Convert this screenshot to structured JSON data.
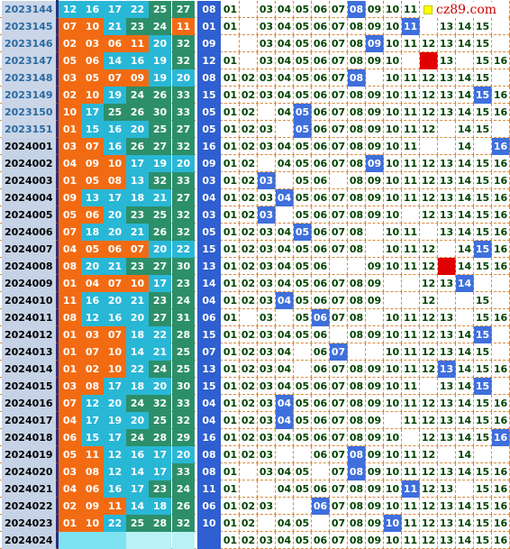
{
  "logo": {
    "text": "cz89.com"
  },
  "colors": {
    "red_bg": "#f26b13",
    "blue_bg": "#29b7d6",
    "teal_bg": "#2c8f6a",
    "special_bg": "#2f5fd0",
    "period_bg": "#c6d3e6",
    "hit_bg": "#3f6fdc",
    "mark_red": "#e00000",
    "dash": "#d98a3a"
  },
  "rows": [
    {
      "period": "2023144",
      "red": [
        "12",
        "16",
        "17",
        "22",
        "25",
        "27"
      ],
      "blue": "08",
      "zone": [
        "01",
        "",
        "03",
        "04",
        "05",
        "06",
        "07",
        "08",
        "09",
        "10",
        "11",
        "",
        "",
        "",
        "",
        ""
      ],
      "hit": [
        8
      ]
    },
    {
      "period": "2023145",
      "red": [
        "07",
        "10",
        "21",
        "23",
        "24",
        "11"
      ],
      "blue": "01",
      "zone": [
        "01",
        "",
        "03",
        "04",
        "05",
        "06",
        "07",
        "08",
        "09",
        "10",
        "11",
        "",
        "13",
        "14",
        "15",
        ""
      ],
      "hit": [
        11
      ]
    },
    {
      "period": "2023146",
      "red": [
        "02",
        "03",
        "06",
        "11",
        "20",
        "32"
      ],
      "blue": "09",
      "zone": [
        "",
        "",
        "03",
        "04",
        "05",
        "06",
        "07",
        "08",
        "09",
        "10",
        "11",
        "12",
        "13",
        "14",
        "15",
        ""
      ],
      "hit": [
        9
      ]
    },
    {
      "period": "2023147",
      "red": [
        "05",
        "06",
        "14",
        "16",
        "19",
        "32"
      ],
      "blue": "12",
      "zone": [
        "01",
        "",
        "03",
        "04",
        "05",
        "06",
        "07",
        "08",
        "09",
        "10",
        "",
        "",
        "13",
        "",
        "15",
        "16"
      ],
      "hit": [],
      "mark": 12
    },
    {
      "period": "2023148",
      "red": [
        "03",
        "05",
        "07",
        "09",
        "19",
        "20"
      ],
      "blue": "08",
      "zone": [
        "01",
        "02",
        "03",
        "04",
        "05",
        "06",
        "07",
        "08",
        "",
        "10",
        "11",
        "12",
        "13",
        "14",
        "15",
        ""
      ],
      "hit": [
        8
      ]
    },
    {
      "period": "2023149",
      "red": [
        "02",
        "10",
        "19",
        "24",
        "26",
        "33"
      ],
      "blue": "15",
      "zone": [
        "01",
        "02",
        "03",
        "04",
        "05",
        "06",
        "07",
        "08",
        "09",
        "10",
        "11",
        "12",
        "13",
        "14",
        "15",
        "16"
      ],
      "hit": [
        15
      ]
    },
    {
      "period": "2023150",
      "red": [
        "10",
        "17",
        "25",
        "26",
        "30",
        "33"
      ],
      "blue": "05",
      "zone": [
        "01",
        "02",
        "",
        "04",
        "05",
        "06",
        "07",
        "08",
        "09",
        "10",
        "11",
        "12",
        "13",
        "14",
        "15",
        "16"
      ],
      "hit": [
        5
      ]
    },
    {
      "period": "2023151",
      "red": [
        "01",
        "15",
        "16",
        "20",
        "25",
        "27"
      ],
      "blue": "05",
      "zone": [
        "01",
        "02",
        "03",
        "",
        "05",
        "06",
        "07",
        "08",
        "09",
        "10",
        "11",
        "12",
        "",
        "14",
        "15",
        ""
      ],
      "hit": [
        5
      ]
    },
    {
      "period": "2024001",
      "red": [
        "03",
        "07",
        "16",
        "26",
        "27",
        "32"
      ],
      "blue": "16",
      "zone": [
        "01",
        "02",
        "03",
        "04",
        "05",
        "06",
        "07",
        "08",
        "09",
        "10",
        "11",
        "",
        "",
        "14",
        "",
        "16"
      ],
      "hit": [
        16
      ]
    },
    {
      "period": "2024002",
      "red": [
        "04",
        "09",
        "10",
        "17",
        "19",
        "20"
      ],
      "blue": "09",
      "zone": [
        "01",
        "02",
        "",
        "04",
        "05",
        "06",
        "07",
        "08",
        "09",
        "10",
        "11",
        "12",
        "13",
        "14",
        "15",
        "16"
      ],
      "hit": [
        9
      ]
    },
    {
      "period": "2024003",
      "red": [
        "01",
        "05",
        "08",
        "13",
        "32",
        "33"
      ],
      "blue": "03",
      "zone": [
        "01",
        "02",
        "03",
        "",
        "05",
        "06",
        "",
        "08",
        "09",
        "10",
        "11",
        "12",
        "13",
        "14",
        "15",
        "16"
      ],
      "hit": [
        3
      ]
    },
    {
      "period": "2024004",
      "red": [
        "09",
        "13",
        "17",
        "18",
        "21",
        "27"
      ],
      "blue": "04",
      "zone": [
        "01",
        "02",
        "03",
        "04",
        "05",
        "06",
        "07",
        "08",
        "09",
        "10",
        "11",
        "12",
        "13",
        "14",
        "15",
        "16"
      ],
      "hit": [
        4
      ]
    },
    {
      "period": "2024005",
      "red": [
        "05",
        "06",
        "20",
        "23",
        "25",
        "32"
      ],
      "blue": "03",
      "zone": [
        "01",
        "02",
        "03",
        "",
        "05",
        "06",
        "07",
        "08",
        "09",
        "10",
        "",
        "12",
        "13",
        "14",
        "15",
        "16"
      ],
      "hit": [
        3
      ]
    },
    {
      "period": "2024006",
      "red": [
        "07",
        "18",
        "20",
        "21",
        "26",
        "32"
      ],
      "blue": "05",
      "zone": [
        "01",
        "02",
        "03",
        "04",
        "05",
        "06",
        "07",
        "08",
        "",
        "10",
        "11",
        "",
        "13",
        "14",
        "15",
        "16"
      ],
      "hit": [
        5
      ]
    },
    {
      "period": "2024007",
      "red": [
        "04",
        "05",
        "06",
        "07",
        "20",
        "22"
      ],
      "blue": "15",
      "zone": [
        "01",
        "02",
        "03",
        "04",
        "05",
        "06",
        "07",
        "08",
        "",
        "10",
        "11",
        "12",
        "",
        "14",
        "15",
        "16"
      ],
      "hit": [
        15
      ]
    },
    {
      "period": "2024008",
      "red": [
        "08",
        "20",
        "21",
        "23",
        "27",
        "30"
      ],
      "blue": "13",
      "zone": [
        "01",
        "02",
        "03",
        "04",
        "05",
        "06",
        "",
        "",
        "09",
        "10",
        "11",
        "12",
        "",
        "14",
        "15",
        "16"
      ],
      "hit": [],
      "mark": 13
    },
    {
      "period": "2024009",
      "red": [
        "01",
        "04",
        "07",
        "10",
        "17",
        "23"
      ],
      "blue": "14",
      "zone": [
        "01",
        "02",
        "03",
        "04",
        "05",
        "06",
        "07",
        "08",
        "09",
        "",
        "",
        "12",
        "13",
        "14",
        "",
        ""
      ],
      "hit": [
        14
      ]
    },
    {
      "period": "2024010",
      "red": [
        "11",
        "16",
        "20",
        "21",
        "23",
        "24"
      ],
      "blue": "04",
      "zone": [
        "01",
        "02",
        "03",
        "04",
        "05",
        "06",
        "07",
        "08",
        "09",
        "",
        "",
        "12",
        "",
        "",
        "15",
        ""
      ],
      "hit": [
        4
      ]
    },
    {
      "period": "2024011",
      "red": [
        "08",
        "12",
        "16",
        "20",
        "27",
        "31"
      ],
      "blue": "06",
      "zone": [
        "01",
        "",
        "03",
        "",
        "05",
        "06",
        "07",
        "08",
        "",
        "10",
        "11",
        "12",
        "13",
        "",
        "15",
        "16"
      ],
      "hit": [
        6
      ]
    },
    {
      "period": "2024012",
      "red": [
        "01",
        "03",
        "07",
        "18",
        "22",
        "28"
      ],
      "blue": "15",
      "zone": [
        "01",
        "02",
        "03",
        "04",
        "05",
        "06",
        "",
        "08",
        "09",
        "10",
        "11",
        "12",
        "13",
        "14",
        "15",
        ""
      ],
      "hit": [
        15
      ]
    },
    {
      "period": "2024013",
      "red": [
        "01",
        "07",
        "10",
        "14",
        "21",
        "25"
      ],
      "blue": "07",
      "zone": [
        "01",
        "02",
        "03",
        "04",
        "",
        "06",
        "07",
        "",
        "",
        "10",
        "11",
        "12",
        "13",
        "14",
        "15",
        ""
      ],
      "hit": [
        7
      ]
    },
    {
      "period": "2024014",
      "red": [
        "01",
        "02",
        "10",
        "22",
        "24",
        "25"
      ],
      "blue": "13",
      "zone": [
        "01",
        "02",
        "03",
        "04",
        "",
        "06",
        "07",
        "08",
        "09",
        "10",
        "11",
        "12",
        "13",
        "14",
        "15",
        "16"
      ],
      "hit": [
        13
      ]
    },
    {
      "period": "2024015",
      "red": [
        "03",
        "08",
        "17",
        "18",
        "20",
        "30"
      ],
      "blue": "15",
      "zone": [
        "01",
        "02",
        "03",
        "04",
        "05",
        "06",
        "07",
        "08",
        "09",
        "10",
        "11",
        "",
        "13",
        "14",
        "15",
        ""
      ],
      "hit": [
        15
      ]
    },
    {
      "period": "2024016",
      "red": [
        "07",
        "12",
        "20",
        "24",
        "32",
        "33"
      ],
      "blue": "04",
      "zone": [
        "01",
        "02",
        "03",
        "04",
        "05",
        "06",
        "07",
        "08",
        "09",
        "10",
        "11",
        "12",
        "13",
        "14",
        "15",
        "16"
      ],
      "hit": [
        4
      ]
    },
    {
      "period": "2024017",
      "red": [
        "04",
        "17",
        "19",
        "20",
        "25",
        "32"
      ],
      "blue": "04",
      "zone": [
        "01",
        "02",
        "03",
        "04",
        "05",
        "06",
        "07",
        "08",
        "09",
        "",
        "11",
        "12",
        "13",
        "14",
        "15",
        "16"
      ],
      "hit": [
        4
      ]
    },
    {
      "period": "2024018",
      "red": [
        "06",
        "15",
        "17",
        "24",
        "28",
        "29"
      ],
      "blue": "16",
      "zone": [
        "01",
        "02",
        "03",
        "04",
        "05",
        "06",
        "07",
        "08",
        "09",
        "10",
        "",
        "12",
        "13",
        "14",
        "15",
        "16"
      ],
      "hit": [
        16
      ]
    },
    {
      "period": "2024019",
      "red": [
        "05",
        "11",
        "12",
        "16",
        "17",
        "20"
      ],
      "blue": "08",
      "zone": [
        "01",
        "02",
        "03",
        "",
        "",
        "06",
        "07",
        "08",
        "09",
        "10",
        "11",
        "12",
        "",
        "14",
        "",
        ""
      ],
      "hit": [
        8
      ]
    },
    {
      "period": "2024020",
      "red": [
        "03",
        "08",
        "12",
        "14",
        "17",
        "33"
      ],
      "blue": "08",
      "zone": [
        "01",
        "",
        "03",
        "04",
        "05",
        "",
        "07",
        "08",
        "09",
        "10",
        "11",
        "12",
        "13",
        "14",
        "15",
        "16"
      ],
      "hit": [
        8
      ]
    },
    {
      "period": "2024021",
      "red": [
        "04",
        "06",
        "16",
        "17",
        "23",
        "24"
      ],
      "blue": "11",
      "zone": [
        "01",
        "",
        "",
        "04",
        "05",
        "06",
        "07",
        "08",
        "09",
        "10",
        "11",
        "12",
        "13",
        "",
        "15",
        "16"
      ],
      "hit": [
        11
      ]
    },
    {
      "period": "2024022",
      "red": [
        "02",
        "09",
        "11",
        "14",
        "18",
        "26"
      ],
      "blue": "06",
      "zone": [
        "01",
        "02",
        "03",
        "",
        "",
        "06",
        "07",
        "08",
        "09",
        "10",
        "11",
        "12",
        "13",
        "14",
        "15",
        "16"
      ],
      "hit": [
        6
      ]
    },
    {
      "period": "2024023",
      "red": [
        "01",
        "10",
        "22",
        "25",
        "28",
        "32"
      ],
      "blue": "10",
      "zone": [
        "01",
        "02",
        "",
        "04",
        "05",
        "",
        "07",
        "08",
        "09",
        "10",
        "11",
        "12",
        "13",
        "14",
        "15",
        "16"
      ],
      "hit": [
        10
      ]
    },
    {
      "period": "2024024",
      "red": [
        "",
        "",
        "",
        "",
        "",
        ""
      ],
      "blue": "",
      "zone": [
        "01",
        "02",
        "03",
        "04",
        "05",
        "06",
        "07",
        "08",
        "09",
        "10",
        "11",
        "12",
        "13",
        "14",
        "15",
        "16"
      ],
      "hit": []
    }
  ]
}
